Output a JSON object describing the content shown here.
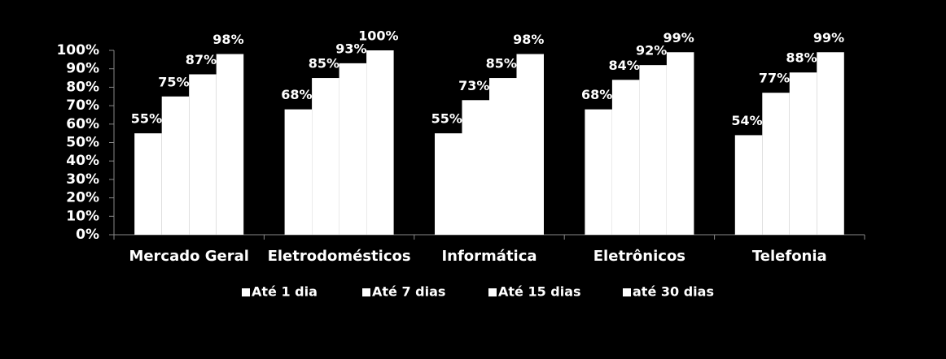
{
  "chart_data": {
    "type": "bar",
    "categories": [
      "Mercado Geral",
      "Eletrodomésticos",
      "Informática",
      "Eletrônicos",
      "Telefonia"
    ],
    "series": [
      {
        "name": "Até 1 dia",
        "color": "#ffffff",
        "values": [
          55,
          68,
          55,
          68,
          54
        ],
        "value_labels": [
          "55%",
          "68%",
          "55%",
          "68%",
          "54%"
        ]
      },
      {
        "name": "Até 7 dias",
        "color": "#ffffff",
        "values": [
          75,
          85,
          73,
          84,
          77
        ],
        "value_labels": [
          "75%",
          "85%",
          "73%",
          "84%",
          "77%"
        ]
      },
      {
        "name": "Até 15 dias",
        "color": "#ffffff",
        "values": [
          87,
          93,
          85,
          92,
          88
        ],
        "value_labels": [
          "87%",
          "93%",
          "85%",
          "92%",
          "88%"
        ]
      },
      {
        "name": "até 30 dias",
        "color": "#ffffff",
        "values": [
          98,
          100,
          98,
          99,
          99
        ],
        "value_labels": [
          "98%",
          "100%",
          "98%",
          "99%",
          "99%"
        ]
      }
    ],
    "ylim": [
      0,
      100
    ],
    "yticks": [
      {
        "value": 0,
        "label": "0%"
      },
      {
        "value": 10,
        "label": "10%"
      },
      {
        "value": 20,
        "label": "20%"
      },
      {
        "value": 30,
        "label": "30%"
      },
      {
        "value": 40,
        "label": "40%"
      },
      {
        "value": 50,
        "label": "50%"
      },
      {
        "value": 60,
        "label": "60%"
      },
      {
        "value": 70,
        "label": "70%"
      },
      {
        "value": 80,
        "label": "80%"
      },
      {
        "value": 90,
        "label": "90%"
      },
      {
        "value": 100,
        "label": "100%"
      }
    ],
    "grid": false,
    "legend": "bottom"
  }
}
